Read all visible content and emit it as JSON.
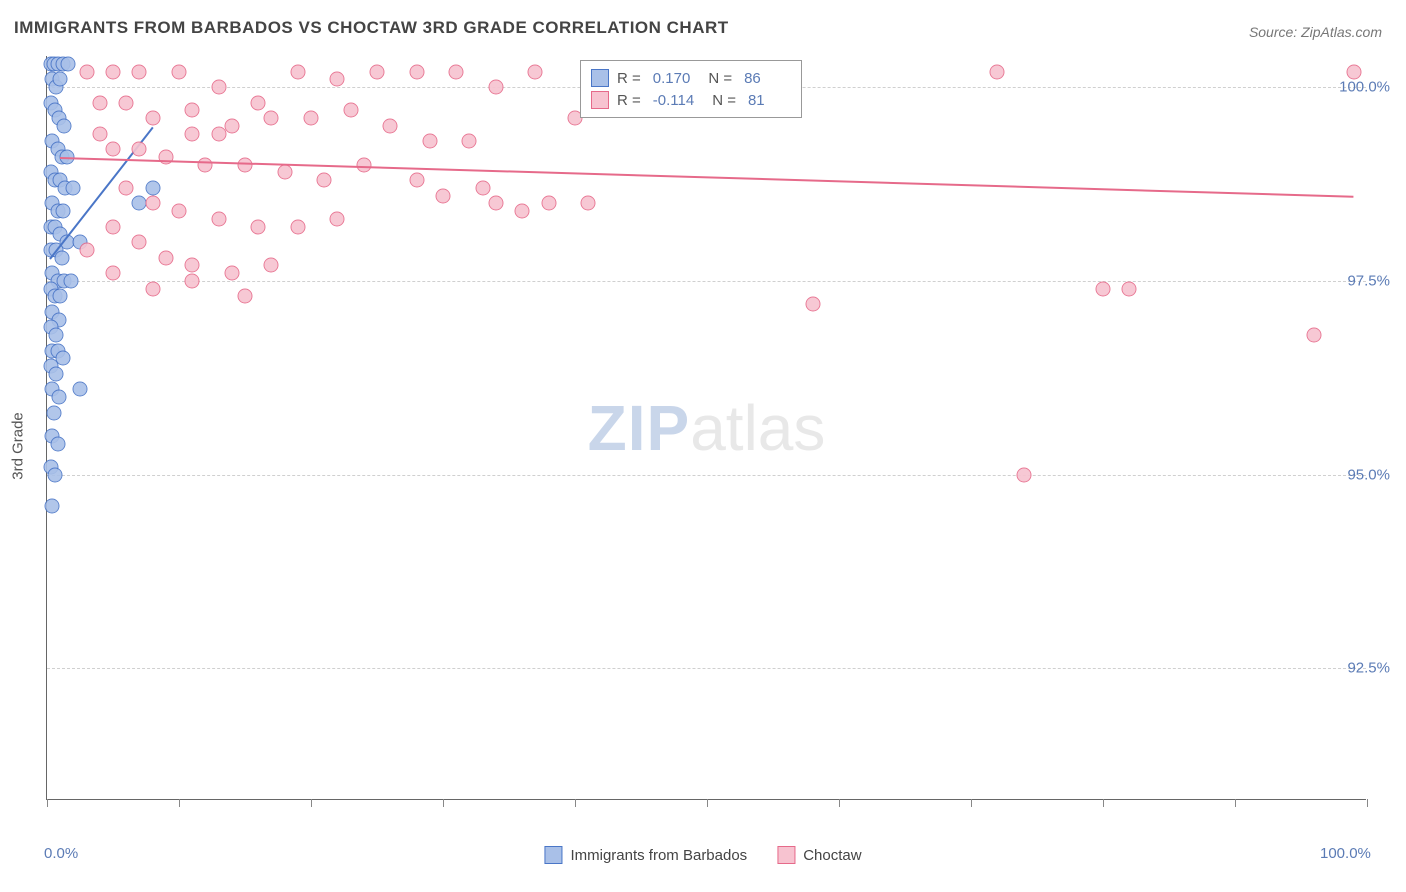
{
  "title": "IMMIGRANTS FROM BARBADOS VS CHOCTAW 3RD GRADE CORRELATION CHART",
  "source": "Source: ZipAtlas.com",
  "watermark": {
    "zip": "ZIP",
    "atlas": "atlas"
  },
  "chart": {
    "type": "scatter",
    "background_color": "#ffffff",
    "grid_color": "#d0d0d0",
    "axis_color": "#666666",
    "tick_label_color": "#5b7bb5",
    "ylabel": "3rd Grade",
    "ylabel_fontsize": 15,
    "xlim": [
      0,
      100
    ],
    "ylim": [
      90.8,
      100.4
    ],
    "xtick_positions": [
      0,
      10,
      20,
      30,
      40,
      50,
      60,
      70,
      80,
      90,
      100
    ],
    "xtick_labels": {
      "0": "0.0%",
      "100": "100.0%"
    },
    "ytick_positions": [
      92.5,
      95.0,
      97.5,
      100.0
    ],
    "ytick_labels": [
      "92.5%",
      "95.0%",
      "97.5%",
      "100.0%"
    ],
    "marker_radius": 7.5,
    "marker_fill_opacity": 0.25,
    "series": [
      {
        "name": "Immigrants from Barbados",
        "color": "#4a76c7",
        "fill": "#a9c0e8",
        "R": "0.170",
        "N": "86",
        "trend": {
          "x1": 0.2,
          "y1": 97.8,
          "x2": 8.0,
          "y2": 99.5
        },
        "points": [
          [
            0.3,
            100.3
          ],
          [
            0.5,
            100.3
          ],
          [
            0.8,
            100.3
          ],
          [
            1.2,
            100.3
          ],
          [
            1.6,
            100.3
          ],
          [
            0.4,
            100.1
          ],
          [
            0.7,
            100.0
          ],
          [
            1.0,
            100.1
          ],
          [
            0.3,
            99.8
          ],
          [
            0.6,
            99.7
          ],
          [
            0.9,
            99.6
          ],
          [
            1.3,
            99.5
          ],
          [
            0.4,
            99.3
          ],
          [
            0.8,
            99.2
          ],
          [
            1.1,
            99.1
          ],
          [
            1.5,
            99.1
          ],
          [
            0.3,
            98.9
          ],
          [
            0.6,
            98.8
          ],
          [
            1.0,
            98.8
          ],
          [
            1.4,
            98.7
          ],
          [
            2.0,
            98.7
          ],
          [
            0.4,
            98.5
          ],
          [
            0.8,
            98.4
          ],
          [
            1.2,
            98.4
          ],
          [
            0.3,
            98.2
          ],
          [
            0.6,
            98.2
          ],
          [
            1.0,
            98.1
          ],
          [
            1.5,
            98.0
          ],
          [
            2.5,
            98.0
          ],
          [
            7.0,
            98.5
          ],
          [
            8.0,
            98.7
          ],
          [
            0.3,
            97.9
          ],
          [
            0.7,
            97.9
          ],
          [
            1.1,
            97.8
          ],
          [
            0.4,
            97.6
          ],
          [
            0.8,
            97.5
          ],
          [
            1.3,
            97.5
          ],
          [
            1.8,
            97.5
          ],
          [
            0.3,
            97.4
          ],
          [
            0.6,
            97.3
          ],
          [
            1.0,
            97.3
          ],
          [
            0.4,
            97.1
          ],
          [
            0.9,
            97.0
          ],
          [
            0.3,
            96.9
          ],
          [
            0.7,
            96.8
          ],
          [
            0.4,
            96.6
          ],
          [
            0.8,
            96.6
          ],
          [
            1.2,
            96.5
          ],
          [
            0.3,
            96.4
          ],
          [
            0.7,
            96.3
          ],
          [
            0.4,
            96.1
          ],
          [
            0.9,
            96.0
          ],
          [
            0.5,
            95.8
          ],
          [
            2.5,
            96.1
          ],
          [
            0.4,
            95.5
          ],
          [
            0.8,
            95.4
          ],
          [
            0.3,
            95.1
          ],
          [
            0.6,
            95.0
          ],
          [
            0.4,
            94.6
          ]
        ]
      },
      {
        "name": "Choctaw",
        "color": "#e66a8a",
        "fill": "#f7c3d0",
        "R": "-0.114",
        "N": "81",
        "trend": {
          "x1": 1.0,
          "y1": 99.1,
          "x2": 99.0,
          "y2": 98.6
        },
        "points": [
          [
            3,
            100.2
          ],
          [
            5,
            100.2
          ],
          [
            7,
            100.2
          ],
          [
            10,
            100.2
          ],
          [
            13,
            100.0
          ],
          [
            16,
            99.8
          ],
          [
            19,
            100.2
          ],
          [
            22,
            100.1
          ],
          [
            25,
            100.2
          ],
          [
            28,
            100.2
          ],
          [
            31,
            100.2
          ],
          [
            34,
            100.0
          ],
          [
            37,
            100.2
          ],
          [
            40,
            99.6
          ],
          [
            43,
            100.0
          ],
          [
            46,
            100.2
          ],
          [
            72,
            100.2
          ],
          [
            99,
            100.2
          ],
          [
            4,
            99.8
          ],
          [
            6,
            99.8
          ],
          [
            8,
            99.6
          ],
          [
            11,
            99.7
          ],
          [
            14,
            99.5
          ],
          [
            17,
            99.6
          ],
          [
            20,
            99.6
          ],
          [
            23,
            99.7
          ],
          [
            26,
            99.5
          ],
          [
            29,
            99.3
          ],
          [
            32,
            99.3
          ],
          [
            11,
            99.4
          ],
          [
            13,
            99.4
          ],
          [
            4,
            99.4
          ],
          [
            5,
            99.2
          ],
          [
            7,
            99.2
          ],
          [
            9,
            99.1
          ],
          [
            12,
            99.0
          ],
          [
            15,
            99.0
          ],
          [
            18,
            98.9
          ],
          [
            21,
            98.8
          ],
          [
            24,
            99.0
          ],
          [
            28,
            98.8
          ],
          [
            30,
            98.6
          ],
          [
            33,
            98.7
          ],
          [
            38,
            98.5
          ],
          [
            41,
            98.5
          ],
          [
            34,
            98.5
          ],
          [
            36,
            98.4
          ],
          [
            6,
            98.7
          ],
          [
            8,
            98.5
          ],
          [
            10,
            98.4
          ],
          [
            13,
            98.3
          ],
          [
            16,
            98.2
          ],
          [
            19,
            98.2
          ],
          [
            22,
            98.3
          ],
          [
            5,
            98.2
          ],
          [
            7,
            98.0
          ],
          [
            3,
            97.9
          ],
          [
            9,
            97.8
          ],
          [
            11,
            97.7
          ],
          [
            14,
            97.6
          ],
          [
            17,
            97.7
          ],
          [
            5,
            97.6
          ],
          [
            8,
            97.4
          ],
          [
            11,
            97.5
          ],
          [
            15,
            97.3
          ],
          [
            58,
            97.2
          ],
          [
            80,
            97.4
          ],
          [
            82,
            97.4
          ],
          [
            74,
            95.0
          ],
          [
            96,
            96.8
          ]
        ]
      }
    ]
  },
  "legend": {
    "items": [
      {
        "label": "Immigrants from Barbados",
        "color": "#4a76c7",
        "fill": "#a9c0e8"
      },
      {
        "label": "Choctaw",
        "color": "#e66a8a",
        "fill": "#f7c3d0"
      }
    ]
  }
}
